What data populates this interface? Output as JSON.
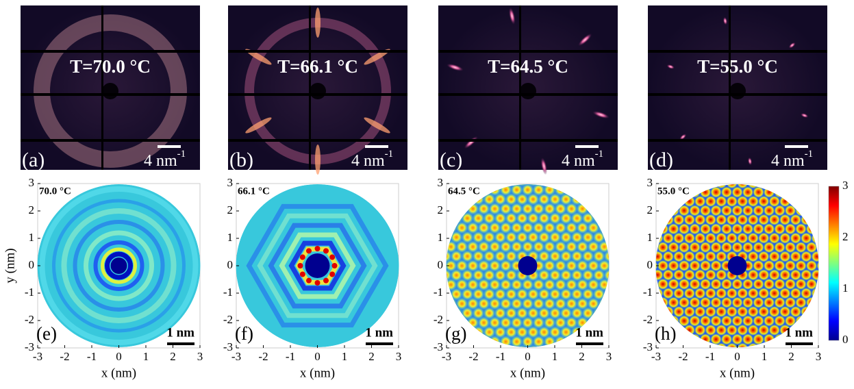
{
  "top_panels": [
    {
      "letter": "(a)",
      "temperature": "T=70.0 °C",
      "scale_label": "4 nm",
      "scale_exponent": "-1"
    },
    {
      "letter": "(b)",
      "temperature": "T=66.1 °C",
      "scale_label": "4 nm",
      "scale_exponent": "-1"
    },
    {
      "letter": "(c)",
      "temperature": "T=64.5 °C",
      "scale_label": "4 nm",
      "scale_exponent": "-1"
    },
    {
      "letter": "(d)",
      "temperature": "T=55.0 °C",
      "scale_label": "4 nm",
      "scale_exponent": "-1"
    }
  ],
  "bottom_panels": [
    {
      "letter": "(e)",
      "temperature": "70.0 °C",
      "scale_label": "1 nm"
    },
    {
      "letter": "(f)",
      "temperature": "66.1 °C",
      "scale_label": "1 nm"
    },
    {
      "letter": "(g)",
      "temperature": "64.5 °C",
      "scale_label": "1 nm"
    },
    {
      "letter": "(h)",
      "temperature": "55.0 °C",
      "scale_label": "1 nm"
    }
  ],
  "axes": {
    "x_label": "x (nm)",
    "y_label": "y (nm)",
    "xticks": [
      -3,
      -2,
      -1,
      0,
      1,
      2,
      3
    ],
    "yticks": [
      3,
      2,
      1,
      0,
      -1,
      -2,
      -3
    ]
  },
  "colorbar": {
    "ticks": [
      3,
      2,
      1,
      0
    ]
  }
}
